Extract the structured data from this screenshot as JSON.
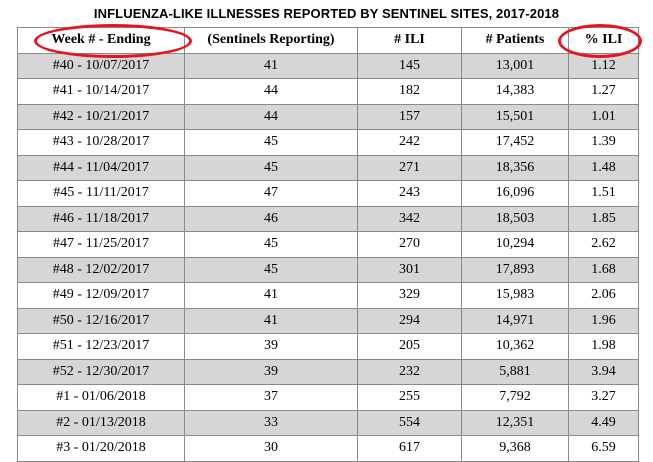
{
  "title": "INFLUENZA-LIKE ILLNESSES REPORTED BY SENTINEL SITES, 2017-2018",
  "annotation_color": "#e8141d",
  "shaded_row_color": "#d6d6d6",
  "columns": [
    "Week # - Ending",
    "(Sentinels Reporting)",
    "# ILI",
    "# Patients",
    "% ILI"
  ],
  "rows": [
    {
      "week": "#40 - 10/07/2017",
      "sentinels": "41",
      "ili": "145",
      "patients": "13,001",
      "pct": "1.12"
    },
    {
      "week": "#41 - 10/14/2017",
      "sentinels": "44",
      "ili": "182",
      "patients": "14,383",
      "pct": "1.27"
    },
    {
      "week": "#42 - 10/21/2017",
      "sentinels": "44",
      "ili": "157",
      "patients": "15,501",
      "pct": "1.01"
    },
    {
      "week": "#43 - 10/28/2017",
      "sentinels": "45",
      "ili": "242",
      "patients": "17,452",
      "pct": "1.39"
    },
    {
      "week": "#44 - 11/04/2017",
      "sentinels": "45",
      "ili": "271",
      "patients": "18,356",
      "pct": "1.48"
    },
    {
      "week": "#45 - 11/11/2017",
      "sentinels": "47",
      "ili": "243",
      "patients": "16,096",
      "pct": "1.51"
    },
    {
      "week": "#46 - 11/18/2017",
      "sentinels": "46",
      "ili": "342",
      "patients": "18,503",
      "pct": "1.85"
    },
    {
      "week": "#47 - 11/25/2017",
      "sentinels": "45",
      "ili": "270",
      "patients": "10,294",
      "pct": "2.62"
    },
    {
      "week": "#48 - 12/02/2017",
      "sentinels": "45",
      "ili": "301",
      "patients": "17,893",
      "pct": "1.68"
    },
    {
      "week": "#49 - 12/09/2017",
      "sentinels": "41",
      "ili": "329",
      "patients": "15,983",
      "pct": "2.06"
    },
    {
      "week": "#50 - 12/16/2017",
      "sentinels": "41",
      "ili": "294",
      "patients": "14,971",
      "pct": "1.96"
    },
    {
      "week": "#51 - 12/23/2017",
      "sentinels": "39",
      "ili": "205",
      "patients": "10,362",
      "pct": "1.98"
    },
    {
      "week": "#52 - 12/30/2017",
      "sentinels": "39",
      "ili": "232",
      "patients": "5,881",
      "pct": "3.94"
    },
    {
      "week": "#1 - 01/06/2018",
      "sentinels": "37",
      "ili": "255",
      "patients": "7,792",
      "pct": "3.27"
    },
    {
      "week": "#2 - 01/13/2018",
      "sentinels": "33",
      "ili": "554",
      "patients": "12,351",
      "pct": "4.49"
    },
    {
      "week": "#3 - 01/20/2018",
      "sentinels": "30",
      "ili": "617",
      "patients": "9,368",
      "pct": "6.59"
    }
  ]
}
